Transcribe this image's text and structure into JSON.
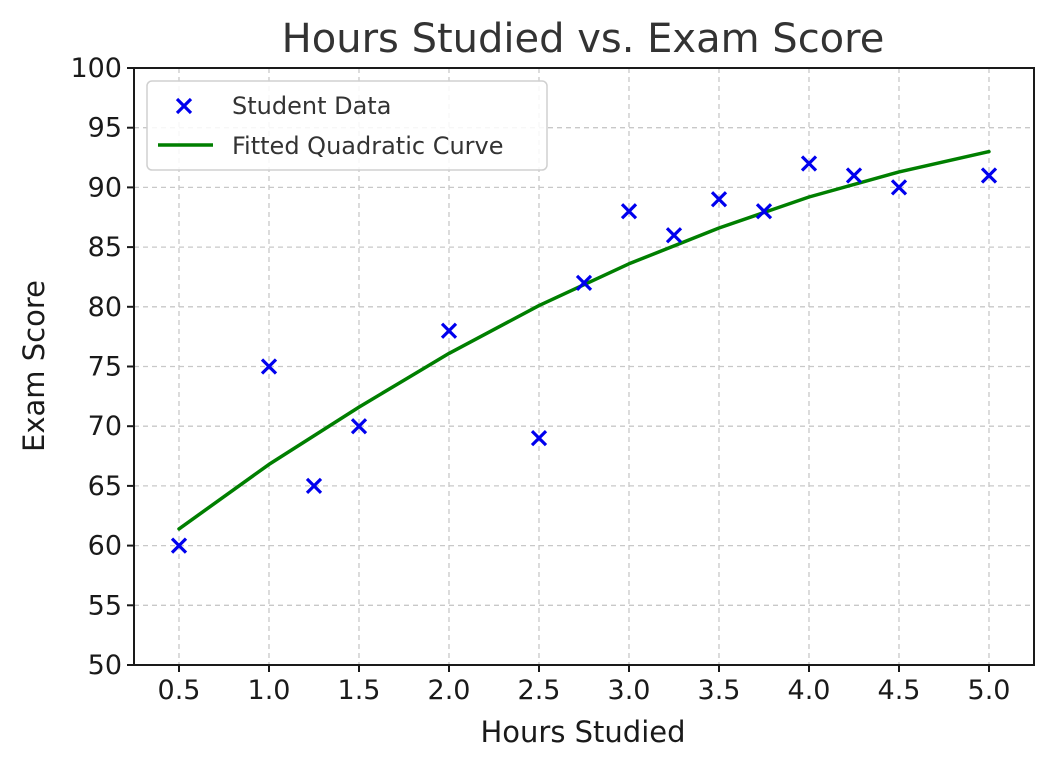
{
  "chart_data": {
    "type": "scatter",
    "title": "Hours Studied vs. Exam Score",
    "xlabel": "Hours Studied",
    "ylabel": "Exam Score",
    "xlim": [
      0.25,
      5.25
    ],
    "ylim": [
      50,
      100
    ],
    "x_ticks": [
      "0.5",
      "1.0",
      "1.5",
      "2.0",
      "2.5",
      "3.0",
      "3.5",
      "4.0",
      "4.5",
      "5.0"
    ],
    "y_ticks": [
      "50",
      "55",
      "60",
      "65",
      "70",
      "75",
      "80",
      "85",
      "90",
      "95",
      "100"
    ],
    "grid": true,
    "legend_position": "top-left",
    "series": [
      {
        "name": "Student Data",
        "kind": "scatter",
        "marker": "x",
        "color": "#0000ee",
        "x": [
          0.5,
          1.0,
          1.25,
          1.5,
          2.0,
          2.5,
          2.75,
          3.0,
          3.25,
          3.5,
          3.75,
          4.0,
          4.25,
          4.5,
          5.0
        ],
        "y": [
          60,
          75,
          65,
          70,
          78,
          69,
          82,
          88,
          86,
          89,
          88,
          92,
          91,
          90,
          91
        ]
      },
      {
        "name": "Fitted Quadratic Curve",
        "kind": "line",
        "color": "#007f00",
        "x": [
          0.5,
          1.0,
          1.5,
          2.0,
          2.5,
          3.0,
          3.5,
          4.0,
          4.5,
          5.0
        ],
        "y": [
          61.4,
          66.8,
          71.6,
          76.1,
          80.1,
          83.6,
          86.6,
          89.2,
          91.3,
          93.0
        ]
      }
    ]
  }
}
